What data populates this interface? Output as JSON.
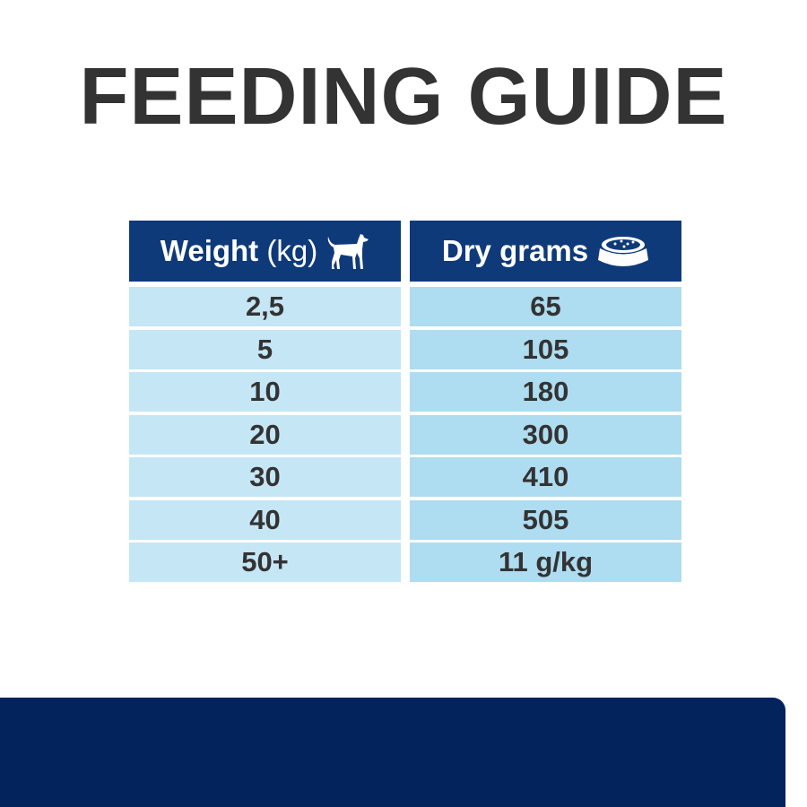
{
  "title": "FEEDING GUIDE",
  "table": {
    "weight_header": {
      "label": "Weight",
      "unit": "(kg)",
      "icon": "dog-icon"
    },
    "grams_header": {
      "label": "Dry grams",
      "icon": "food-bowl-icon"
    },
    "weights": [
      "2,5",
      "5",
      "10",
      "20",
      "30",
      "40",
      "50+"
    ],
    "grams": [
      "65",
      "105",
      "180",
      "300",
      "410",
      "505",
      "11 g/kg"
    ]
  },
  "colors": {
    "header": "#0f3a7a",
    "left_cells": "#c5e6f5",
    "right_cells": "#aedcf0",
    "bottom_bar": "#02235c",
    "text": "#333333"
  }
}
